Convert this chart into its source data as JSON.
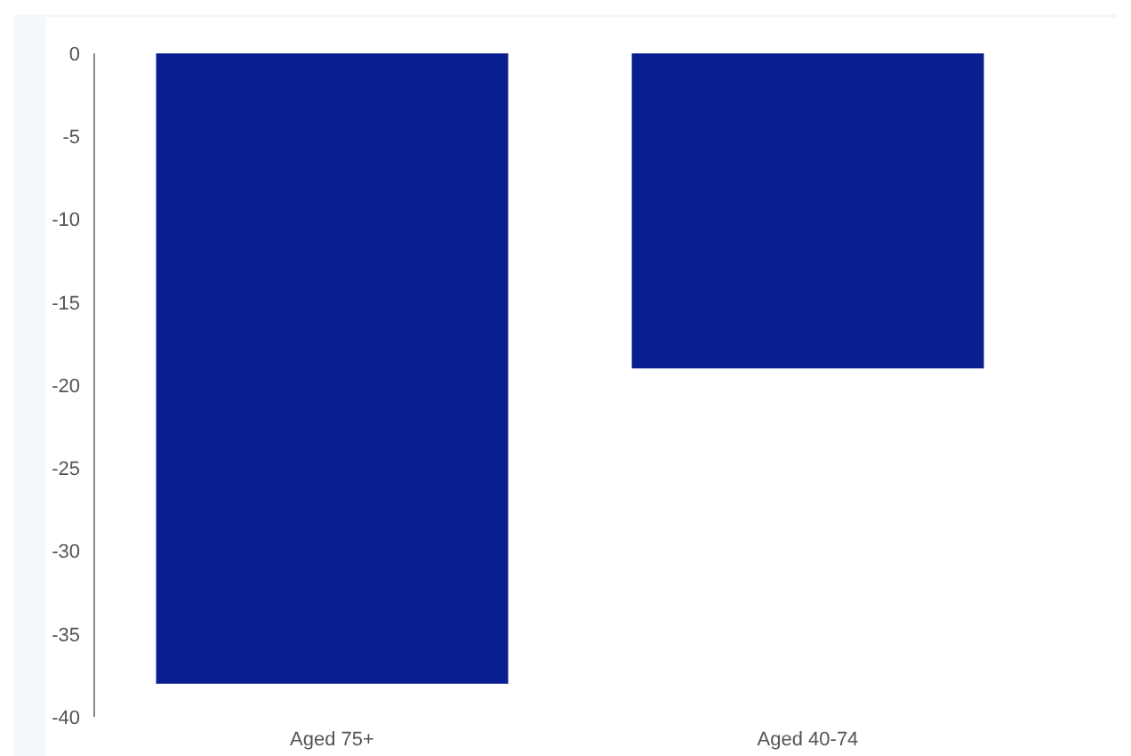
{
  "chart_data": {
    "type": "bar",
    "categories": [
      "Aged 75+",
      "Aged 40-74"
    ],
    "values": [
      -38,
      -19
    ],
    "color": "#0a1f8f",
    "ylim": [
      -40,
      0
    ],
    "yticks": [
      0,
      -5,
      -10,
      -15,
      -20,
      -25,
      -30,
      -35,
      -40
    ],
    "grid": false
  }
}
